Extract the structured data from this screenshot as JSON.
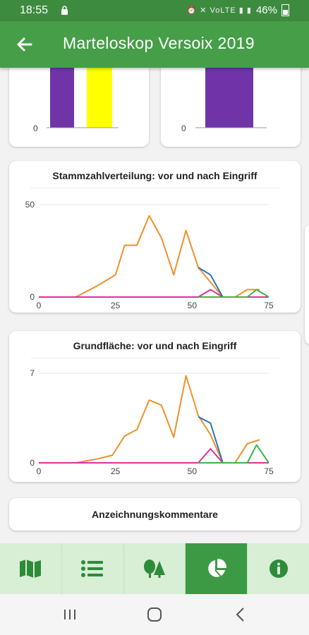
{
  "status_bar": {
    "time": "18:55",
    "battery": "46%",
    "icons": "⏰ ✕ VoLTE ▮ ▮"
  },
  "header": {
    "title": "Marteloskop Versoix 2019"
  },
  "top_cards": {
    "left_zero": "0",
    "right_zero": "0"
  },
  "chart_data": [
    {
      "type": "bar",
      "categories": [
        "",
        ""
      ],
      "series": [
        {
          "values": [
            null,
            null
          ]
        }
      ],
      "ylim": [
        0,
        null
      ],
      "tick_labels": {
        "y": [
          "0"
        ]
      },
      "note_visible": "chart cropped at top; only lower portion visible"
    },
    {
      "type": "bar",
      "categories": [
        ""
      ],
      "series": [
        {
          "values": [
            null
          ]
        }
      ],
      "ylim": [
        0,
        null
      ],
      "tick_labels": {
        "y": [
          "0"
        ]
      }
    },
    {
      "type": "line",
      "title": "Stammzahlverteilung: vor und nach Eingriff",
      "xlabel": "",
      "ylabel": "",
      "xlim": [
        0,
        75
      ],
      "ylim": [
        0,
        50
      ],
      "x_ticks": [
        0,
        25,
        50,
        75
      ],
      "y_ticks": [
        0,
        50
      ],
      "grid": true,
      "series": [
        {
          "color": "#f0902a",
          "x": [
            0,
            12,
            19,
            25,
            28,
            32,
            36,
            40,
            44,
            48,
            52,
            56,
            60,
            64,
            68,
            72
          ],
          "y": [
            0,
            0,
            6,
            12,
            28,
            28,
            44,
            32,
            12,
            36,
            16,
            8,
            0,
            0,
            4,
            4
          ]
        },
        {
          "color": "#2e74b5",
          "x": [
            52,
            56,
            60
          ],
          "y": [
            16,
            12,
            0
          ]
        },
        {
          "color": "#e0309a",
          "x": [
            0,
            52,
            56,
            60,
            75
          ],
          "y": [
            0,
            0,
            4,
            0,
            0
          ]
        },
        {
          "color": "#3cb44b",
          "x": [
            52,
            60,
            68,
            71,
            75
          ],
          "y": [
            0,
            0,
            0,
            4,
            0
          ]
        }
      ]
    },
    {
      "type": "line",
      "title": "Grundfläche: vor und nach Eingriff",
      "xlabel": "",
      "ylabel": "",
      "xlim": [
        0,
        75
      ],
      "ylim": [
        0,
        7
      ],
      "x_ticks": [
        0,
        25,
        50,
        75
      ],
      "y_ticks": [
        0,
        7
      ],
      "grid": true,
      "series": [
        {
          "color": "#f0902a",
          "x": [
            0,
            12,
            19,
            24,
            28,
            32,
            36,
            40,
            44,
            48,
            52,
            56,
            60,
            64,
            68,
            72
          ],
          "y": [
            0,
            0,
            0.3,
            0.6,
            2.1,
            2.6,
            4.9,
            4.5,
            2.0,
            6.8,
            3.7,
            2.2,
            0,
            0,
            1.5,
            1.8
          ]
        },
        {
          "color": "#2e74b5",
          "x": [
            52,
            56,
            60
          ],
          "y": [
            3.6,
            3.1,
            0
          ]
        },
        {
          "color": "#e0309a",
          "x": [
            0,
            52,
            56,
            60,
            75
          ],
          "y": [
            0,
            0,
            1.1,
            0,
            0
          ]
        },
        {
          "color": "#3cb44b",
          "x": [
            52,
            60,
            68,
            71,
            75
          ],
          "y": [
            0,
            0,
            0,
            1.4,
            0
          ]
        }
      ]
    }
  ],
  "comments_card": {
    "title": "Anzeichnungskommentare"
  },
  "bottom_nav": [
    {
      "icon": "map-icon",
      "active": false
    },
    {
      "icon": "list-icon",
      "active": false
    },
    {
      "icon": "trees-icon",
      "active": false
    },
    {
      "icon": "pie-chart-icon",
      "active": true
    },
    {
      "icon": "info-icon",
      "active": false
    }
  ],
  "colors": {
    "primary": "#469e48",
    "nav_bg": "#d8eed5",
    "bar_purple": "#7034a8",
    "bar_yellow": "#ffff00"
  }
}
